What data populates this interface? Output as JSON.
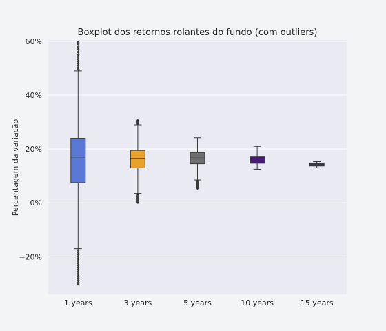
{
  "chart_data": {
    "type": "boxplot",
    "title": "Boxplot dos retornos rolantes do fundo (com outliers)",
    "xlabel": "",
    "ylabel": "Percentagem da variação",
    "ylim": [
      -34,
      60.5
    ],
    "y_ticks": [
      {
        "value": 60,
        "label": "60%"
      },
      {
        "value": 40,
        "label": "40%"
      },
      {
        "value": 20,
        "label": "20%"
      },
      {
        "value": 0,
        "label": "0%"
      },
      {
        "value": -20,
        "label": "−20%"
      }
    ],
    "grid": true,
    "categories": [
      "1 years",
      "3 years",
      "5 years",
      "10 years",
      "15 years"
    ],
    "boxes": [
      {
        "category": "1 years",
        "color": "#5a78d6",
        "whisker_low": -17,
        "q1": 7.5,
        "median": 17,
        "q3": 24,
        "whisker_high": 49,
        "outliers": [
          -17.6,
          -18.4,
          -19.2,
          -20.0,
          -20.8,
          -21.6,
          -22.4,
          -23.2,
          -24.0,
          -24.8,
          -25.6,
          -26.4,
          -27.2,
          -28.0,
          -28.8,
          -29.6,
          -30.2,
          49.6,
          50.2,
          51.0,
          51.8,
          52.6,
          53.4,
          54.2,
          55.0,
          56.0,
          57.0,
          58.0,
          59.0,
          59.7
        ]
      },
      {
        "category": "3 years",
        "color": "#e8a12a",
        "whisker_low": 3.5,
        "q1": 13,
        "median": 16.5,
        "q3": 19.5,
        "whisker_high": 29,
        "outliers": [
          0.1,
          0.5,
          0.9,
          1.3,
          1.7,
          2.1,
          2.5,
          2.9,
          29.4,
          29.8,
          30.2,
          30.6
        ]
      },
      {
        "category": "5 years",
        "color": "#6e6e6e",
        "whisker_low": 8.5,
        "q1": 14.5,
        "median": 17,
        "q3": 18.7,
        "whisker_high": 24.2,
        "outliers": [
          5.4,
          5.8,
          6.2,
          6.6,
          7.0,
          7.4,
          7.8,
          8.2
        ]
      },
      {
        "category": "10 years",
        "color": "#4b1679",
        "whisker_low": 12.5,
        "q1": 14.7,
        "median": 16,
        "q3": 17.3,
        "whisker_high": 21,
        "outliers": []
      },
      {
        "category": "15 years",
        "color": "#2c3b6e",
        "whisker_low": 13,
        "q1": 13.7,
        "median": 14.2,
        "q3": 14.8,
        "whisker_high": 15.3,
        "outliers": []
      }
    ]
  },
  "colors": {
    "background": "#f3f4f6",
    "plot_background": "#eaeaf2",
    "grid": "#ffffff",
    "line": "#3a3a3a"
  }
}
